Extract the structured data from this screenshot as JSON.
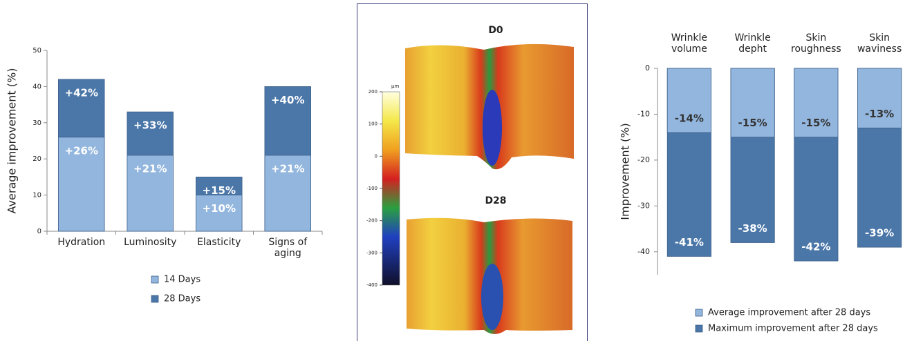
{
  "chart_data": [
    {
      "type": "bar",
      "barmode": "overlay",
      "y_label": "Average improvement (%)",
      "categories": [
        "Hydration",
        "Luminosity",
        "Elasticity",
        "Signs of aging"
      ],
      "series": [
        {
          "name": "14 Days",
          "color": "#93b6de",
          "label_color": "#ffffff",
          "values": [
            26,
            21,
            10,
            21
          ],
          "value_labels": [
            "+26%",
            "+21%",
            "+10%",
            "+21%"
          ]
        },
        {
          "name": "28 Days",
          "color": "#4a76a8",
          "label_color": "#ffffff",
          "values": [
            42,
            33,
            15,
            40
          ],
          "value_labels": [
            "+42%",
            "+33%",
            "+15%",
            "+40%"
          ]
        }
      ],
      "ylim": [
        0,
        50
      ],
      "yticks": [
        0,
        10,
        20,
        30,
        40,
        50
      ]
    },
    {
      "type": "bar",
      "barmode": "overlay",
      "y_label": "Improvement (%)",
      "categories": [
        "Wrinkle volume",
        "Wrinkle depht",
        "Skin roughness",
        "Skin waviness"
      ],
      "series": [
        {
          "name": "Average improvement after 28 days",
          "color": "#93b6de",
          "label_color": "#333333",
          "values": [
            -14,
            -15,
            -15,
            -13
          ],
          "value_labels": [
            "-14%",
            "-15%",
            "-15%",
            "-13%"
          ]
        },
        {
          "name": "Maximum improvement after 28 days",
          "color": "#4a76a8",
          "label_color": "#ffffff",
          "values": [
            -41,
            -38,
            -42,
            -39
          ],
          "value_labels": [
            "-41%",
            "-38%",
            "-42%",
            "-39%"
          ]
        }
      ],
      "ylim": [
        -45,
        0
      ],
      "yticks": [
        0,
        -10,
        -20,
        -30,
        -40
      ]
    }
  ],
  "figure": {
    "panels": [
      {
        "label": "D0"
      },
      {
        "label": "D28"
      }
    ],
    "colorbar": {
      "unit": "µm",
      "lim": [
        -400,
        200
      ],
      "ticks": [
        200,
        100,
        0,
        -100,
        -200,
        -300,
        -400
      ]
    }
  }
}
